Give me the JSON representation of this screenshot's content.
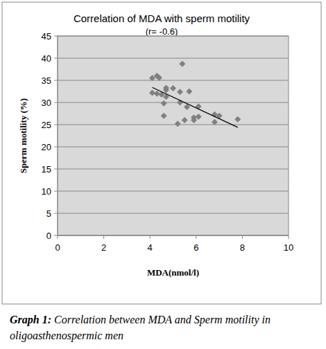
{
  "chart_data": {
    "type": "scatter",
    "title": "Correlation of MDA with sperm motility",
    "subtitle": "(r= -0.6)",
    "x_label": "MDA(nmol/l)",
    "y_label": "Sperm motility (%)",
    "caption_label": "Graph 1:",
    "caption": "Correlation between MDA and Sperm motility in oligoasthenospermic men",
    "series": [
      {
        "type": "scatter",
        "marker": "diamond",
        "color": "#808080",
        "x": [
          4.1,
          4.1,
          4.3,
          4.4,
          4.3,
          4.5,
          4.6,
          4.6,
          4.7,
          4.7,
          4.7,
          5.0,
          5.2,
          5.3,
          5.3,
          5.4,
          5.5,
          5.6,
          5.7,
          5.9,
          5.9,
          6.1,
          6.1,
          6.8,
          6.8,
          7.0,
          7.8
        ],
        "values": [
          35.5,
          32.2,
          36.0,
          35.6,
          32.0,
          31.8,
          27.0,
          29.8,
          31.3,
          32.8,
          33.3,
          33.2,
          25.2,
          32.4,
          30.0,
          38.7,
          26.0,
          29.0,
          32.5,
          26.0,
          26.6,
          26.8,
          29.1,
          27.3,
          25.6,
          27.0,
          26.2
        ]
      },
      {
        "type": "line",
        "line_style": "solid",
        "color": "#000000",
        "x": [
          4.1,
          7.8
        ],
        "values": [
          33.4,
          24.4
        ]
      }
    ],
    "xlim": [
      0,
      10
    ],
    "xticks": [
      0,
      2,
      4,
      6,
      8,
      10
    ],
    "ylim": [
      0,
      45
    ],
    "yticks": [
      0,
      5,
      10,
      15,
      20,
      25,
      30,
      35,
      40,
      45
    ],
    "grid": true
  }
}
